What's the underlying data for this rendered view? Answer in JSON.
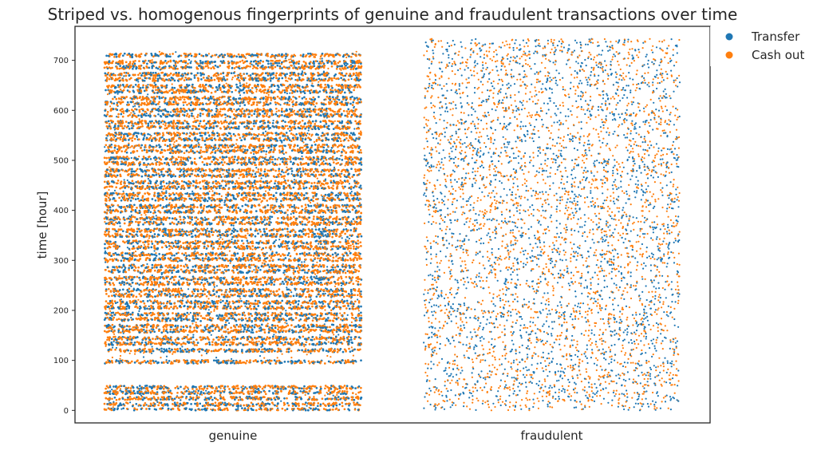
{
  "chart_data": {
    "type": "scatter",
    "title": "Striped vs. homogenous fingerprints of genuine and fraudulent transactions over time",
    "xlabel": "",
    "ylabel": "time [hour]",
    "categories": [
      "genuine",
      "fraudulent"
    ],
    "yticks": [
      0,
      100,
      200,
      300,
      400,
      500,
      600,
      700
    ],
    "ylim": [
      -25,
      768
    ],
    "grid": false,
    "legend": {
      "placement": "outside-top-right"
    },
    "series": [
      {
        "name": "Transfer",
        "color": "#1f77b4"
      },
      {
        "name": "Cash out",
        "color": "#ff7f0e"
      }
    ],
    "distributions": {
      "genuine": {
        "pattern": "striped",
        "range": [
          0,
          718
        ],
        "empty_gap": [
          50,
          93
        ],
        "band_centers": [
          1,
          12,
          24,
          36,
          46,
          97,
          120,
          134,
          144,
          159,
          168,
          182,
          192,
          206,
          216,
          230,
          240,
          254,
          264,
          278,
          288,
          302,
          312,
          326,
          336,
          350,
          360,
          374,
          384,
          398,
          408,
          422,
          432,
          446,
          456,
          470,
          480,
          494,
          504,
          518,
          528,
          542,
          552,
          566,
          576,
          590,
          600,
          614,
          624,
          638,
          648,
          662,
          672,
          686,
          696,
          710
        ]
      },
      "fraudulent": {
        "pattern": "homogenous",
        "range": [
          0,
          743
        ]
      }
    }
  }
}
